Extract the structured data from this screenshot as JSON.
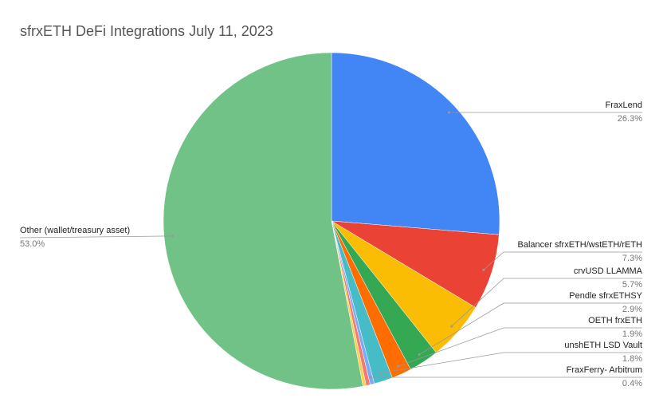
{
  "chart_data": {
    "type": "pie",
    "title": "sfrxETH DeFi Integrations July 11, 2023",
    "categories": [
      "FraxLend",
      "Balancer sfrxETH/wstETH/rETH",
      "crvUSD LLAMMA",
      "Pendle sfrxETHSY",
      "OETH frxETH",
      "unshETH LSD Vault",
      "FraxFerry- Arbitrum",
      null,
      null,
      "Other (wallet/treasury asset)"
    ],
    "values": [
      26.3,
      7.3,
      5.7,
      2.9,
      1.9,
      1.8,
      0.4,
      0.4,
      0.3,
      53.0
    ],
    "value_labels": [
      "26.3%",
      "7.3%",
      "5.7%",
      "2.9%",
      "1.9%",
      "1.8%",
      "0.4%",
      null,
      null,
      "53.0%"
    ],
    "colors": [
      "#4285f4",
      "#ea4335",
      "#fbbc04",
      "#34a853",
      "#ff6d01",
      "#46bdc6",
      "#7baaf7",
      "#f07b72",
      "#fcd04f",
      "#71c287"
    ]
  }
}
